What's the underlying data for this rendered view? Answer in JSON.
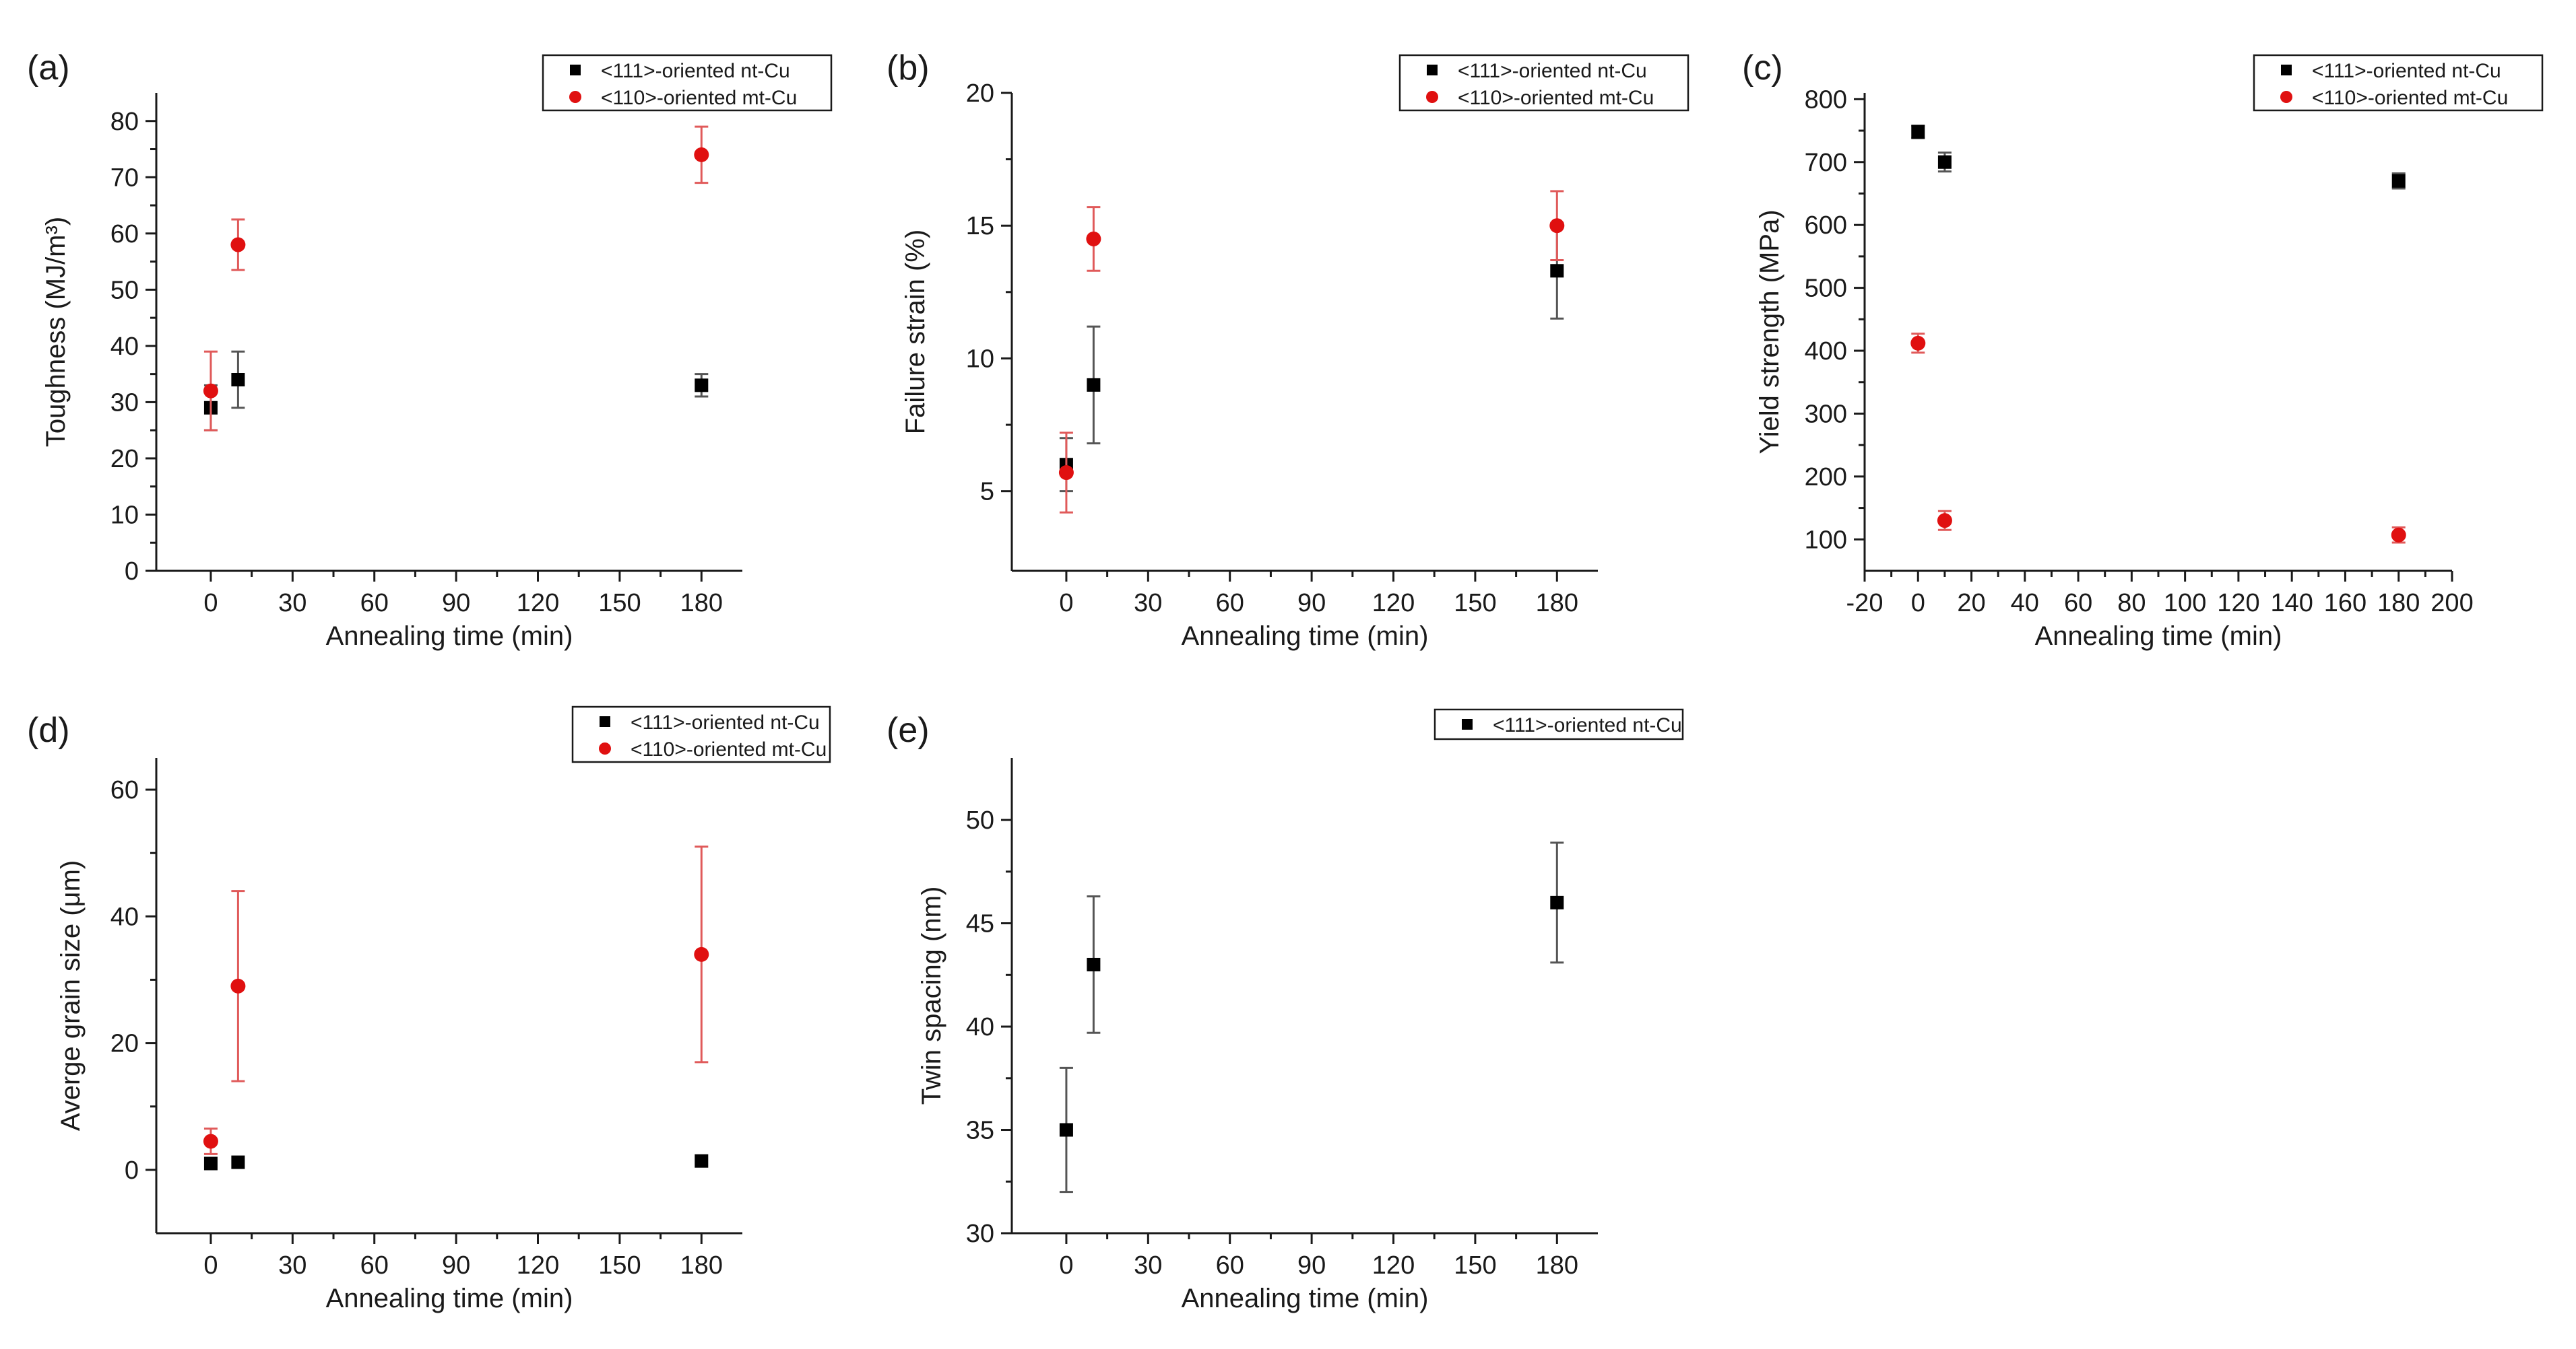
{
  "colors": {
    "nt": "#000000",
    "mt": "#e01010",
    "err_mt": "#e05a5a",
    "err_nt": "#555555"
  },
  "chart_data": [
    {
      "id": "a",
      "type": "scatter",
      "panel_label": "(a)",
      "title": "",
      "xlabel": "Annealing time (min)",
      "ylabel": "Toughness (MJ/m³)",
      "xlim": [
        -20,
        195
      ],
      "ylim": [
        0,
        85
      ],
      "xticks": [
        0,
        30,
        60,
        90,
        120,
        150,
        180
      ],
      "xtick_labels": [
        "0",
        "30",
        "60",
        "90",
        "120",
        "150",
        "180"
      ],
      "yticks": [
        0,
        10,
        20,
        30,
        40,
        50,
        60,
        70,
        80
      ],
      "ytick_labels": [
        "0",
        "10",
        "20",
        "30",
        "40",
        "50",
        "60",
        "70",
        "80"
      ],
      "legend_placement": "top-right",
      "series": [
        {
          "name": "<111>-oriented nt-Cu",
          "marker": "square",
          "color": "#000000",
          "x": [
            0,
            10,
            180
          ],
          "y": [
            29,
            34,
            33
          ],
          "err": [
            4,
            5,
            2
          ]
        },
        {
          "name": "<110>-oriented mt-Cu",
          "marker": "circle",
          "color": "#e01010",
          "x": [
            0,
            10,
            180
          ],
          "y": [
            32,
            58,
            74
          ],
          "err": [
            7,
            4.5,
            5
          ]
        }
      ]
    },
    {
      "id": "b",
      "type": "scatter",
      "panel_label": "(b)",
      "title": "",
      "xlabel": "Annealing time (min)",
      "ylabel": "Failure strain (%)",
      "xlim": [
        -20,
        195
      ],
      "ylim": [
        2,
        20
      ],
      "xticks": [
        0,
        30,
        60,
        90,
        120,
        150,
        180
      ],
      "xtick_labels": [
        "0",
        "30",
        "60",
        "90",
        "120",
        "150",
        "180"
      ],
      "yticks": [
        5,
        10,
        15,
        20
      ],
      "ytick_labels": [
        "5",
        "10",
        "15",
        "20"
      ],
      "legend_placement": "top-right",
      "series": [
        {
          "name": "<111>-oriented nt-Cu",
          "marker": "square",
          "color": "#000000",
          "x": [
            0,
            10,
            180
          ],
          "y": [
            6,
            9,
            13.3
          ],
          "err": [
            1,
            2.2,
            1.8
          ]
        },
        {
          "name": "<110>-oriented mt-Cu",
          "marker": "circle",
          "color": "#e01010",
          "x": [
            0,
            10,
            180
          ],
          "y": [
            5.7,
            14.5,
            15
          ],
          "err": [
            1.5,
            1.2,
            1.3
          ]
        }
      ]
    },
    {
      "id": "c",
      "type": "scatter",
      "panel_label": "(c)",
      "title": "",
      "xlabel": "Annealing time (min)",
      "ylabel": "Yield strength (MPa)",
      "xlim": [
        -20,
        200
      ],
      "ylim": [
        50,
        810
      ],
      "xticks": [
        -20,
        0,
        20,
        40,
        60,
        80,
        100,
        120,
        140,
        160,
        180,
        200
      ],
      "xtick_labels": [
        "-20",
        "0",
        "20",
        "40",
        "60",
        "80",
        "100",
        "120",
        "140",
        "160",
        "180",
        "200"
      ],
      "yticks": [
        100,
        200,
        300,
        400,
        500,
        600,
        700,
        800
      ],
      "ytick_labels": [
        "100",
        "200",
        "300",
        "400",
        "500",
        "600",
        "700",
        "800"
      ],
      "legend_placement": "top-right",
      "series": [
        {
          "name": "<111>-oriented nt-Cu",
          "marker": "square",
          "color": "#000000",
          "x": [
            0,
            10,
            180
          ],
          "y": [
            748,
            700,
            670
          ],
          "err": [
            10,
            15,
            12
          ]
        },
        {
          "name": "<110>-oriented mt-Cu",
          "marker": "circle",
          "color": "#e01010",
          "x": [
            0,
            10,
            180
          ],
          "y": [
            412,
            130,
            107
          ],
          "err": [
            15,
            15,
            12
          ]
        }
      ]
    },
    {
      "id": "d",
      "type": "scatter",
      "panel_label": "(d)",
      "title": "",
      "xlabel": "Annealing time (min)",
      "ylabel": "Averge grain size (μm)",
      "xlim": [
        -20,
        195
      ],
      "ylim": [
        -10,
        65
      ],
      "xticks": [
        0,
        30,
        60,
        90,
        120,
        150,
        180
      ],
      "xtick_labels": [
        "0",
        "30",
        "60",
        "90",
        "120",
        "150",
        "180"
      ],
      "yticks": [
        0,
        20,
        40,
        60
      ],
      "ytick_labels": [
        "0",
        "20",
        "40",
        "60"
      ],
      "legend_placement": "top-right",
      "series": [
        {
          "name": "<111>-oriented nt-Cu",
          "marker": "square",
          "color": "#000000",
          "x": [
            0,
            10,
            180
          ],
          "y": [
            1,
            1.2,
            1.4
          ],
          "err": [
            0,
            0,
            0
          ]
        },
        {
          "name": "<110>-oriented mt-Cu",
          "marker": "circle",
          "color": "#e01010",
          "x": [
            0,
            10,
            180
          ],
          "y": [
            4.5,
            29,
            34
          ],
          "err": [
            2,
            15,
            17
          ]
        }
      ]
    },
    {
      "id": "e",
      "type": "scatter",
      "panel_label": "(e)",
      "title": "",
      "xlabel": "Annealing time (min)",
      "ylabel": "Twin spacing (nm)",
      "xlim": [
        -20,
        195
      ],
      "ylim": [
        30,
        53
      ],
      "xticks": [
        0,
        30,
        60,
        90,
        120,
        150,
        180
      ],
      "xtick_labels": [
        "0",
        "30",
        "60",
        "90",
        "120",
        "150",
        "180"
      ],
      "yticks": [
        30,
        35,
        40,
        45,
        50
      ],
      "ytick_labels": [
        "30",
        "35",
        "40",
        "45",
        "50"
      ],
      "legend_placement": "top-right",
      "series": [
        {
          "name": "<111>-oriented nt-Cu",
          "marker": "square",
          "color": "#000000",
          "x": [
            0,
            10,
            180
          ],
          "y": [
            35,
            43,
            46
          ],
          "err": [
            3,
            3.3,
            2.9
          ]
        }
      ]
    }
  ]
}
